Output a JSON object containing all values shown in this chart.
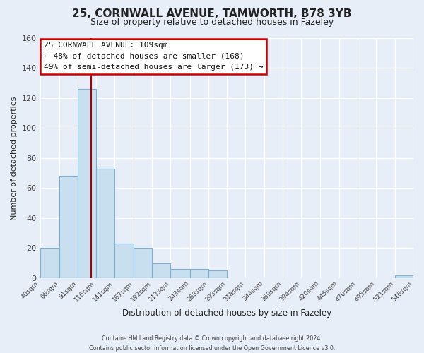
{
  "title_line1": "25, CORNWALL AVENUE, TAMWORTH, B78 3YB",
  "title_line2": "Size of property relative to detached houses in Fazeley",
  "bar_heights": [
    20,
    68,
    126,
    73,
    23,
    20,
    10,
    6,
    6,
    5,
    0,
    0,
    0,
    0,
    0,
    0,
    0,
    0,
    0,
    2
  ],
  "bin_edges": [
    40,
    66,
    91,
    116,
    141,
    167,
    192,
    217,
    243,
    268,
    293,
    318,
    344,
    369,
    394,
    420,
    445,
    470,
    495,
    521,
    546
  ],
  "xlabels": [
    "40sqm",
    "66sqm",
    "91sqm",
    "116sqm",
    "141sqm",
    "167sqm",
    "192sqm",
    "217sqm",
    "243sqm",
    "268sqm",
    "293sqm",
    "318sqm",
    "344sqm",
    "369sqm",
    "394sqm",
    "420sqm",
    "445sqm",
    "470sqm",
    "495sqm",
    "521sqm",
    "546sqm"
  ],
  "bar_color": "#c8dff0",
  "bar_edge_color": "#7ab0d4",
  "property_value": 109,
  "red_line_color": "#aa0000",
  "ylabel": "Number of detached properties",
  "xlabel": "Distribution of detached houses by size in Fazeley",
  "ylim": [
    0,
    160
  ],
  "yticks": [
    0,
    20,
    40,
    60,
    80,
    100,
    120,
    140,
    160
  ],
  "annotation_text_line1": "25 CORNWALL AVENUE: 109sqm",
  "annotation_text_line2": "← 48% of detached houses are smaller (168)",
  "annotation_text_line3": "49% of semi-detached houses are larger (173) →",
  "annotation_box_color": "#ffffff",
  "annotation_box_edge_color": "#cc0000",
  "footer_line1": "Contains HM Land Registry data © Crown copyright and database right 2024.",
  "footer_line2": "Contains public sector information licensed under the Open Government Licence v3.0.",
  "background_color": "#e8eef8",
  "grid_color": "#ffffff",
  "title_color": "#222222",
  "axis_label_color": "#222222",
  "tick_color": "#444444"
}
